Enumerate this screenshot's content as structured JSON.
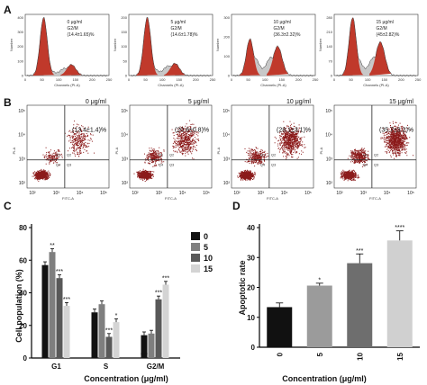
{
  "panel_labels": {
    "a": "A",
    "b": "B",
    "c": "C",
    "d": "D"
  },
  "colors": {
    "bar_0": "#111111",
    "bar_5": "#7f7f7f",
    "bar_10": "#595959",
    "bar_15": "#d4d4d4",
    "flow_dots": "#8b1a1a",
    "histogram_fill": "#c0392b",
    "histogram_s_fill": "#c8c8c8"
  },
  "cell_cycle_histograms": [
    {
      "concentration": "0 μg/ml",
      "phase_label": "G2/M",
      "g2m_value": "(14.4±1.65)%",
      "xlabel": "Channels (PI-A)",
      "ylabel": "Number",
      "y_ticks": [
        "0",
        "100",
        "200",
        "300",
        "400"
      ],
      "x_ticks": [
        "0",
        "50",
        "100",
        "150",
        "200",
        "250"
      ]
    },
    {
      "concentration": "5 μg/ml",
      "phase_label": "G2/M",
      "g2m_value": "(14.6±1.78)%",
      "xlabel": "Channels (PI-A)",
      "ylabel": "Number",
      "y_ticks": [
        "0",
        "50",
        "100",
        "150",
        "200"
      ],
      "x_ticks": [
        "0",
        "50",
        "100",
        "150",
        "200",
        "250"
      ]
    },
    {
      "concentration": "10 μg/ml",
      "phase_label": "G2/M",
      "g2m_value": "(36.3±2.32)%",
      "xlabel": "Channels (PI-A)",
      "ylabel": "Number",
      "y_ticks": [
        "0",
        "100",
        "200",
        "300"
      ],
      "x_ticks": [
        "0",
        "50",
        "100",
        "150",
        "200",
        "250"
      ]
    },
    {
      "concentration": "15 μg/ml",
      "phase_label": "G2/M",
      "g2m_value": "(45±2.82)%",
      "xlabel": "Channels (PI-A)",
      "ylabel": "Number",
      "y_ticks": [
        "0",
        "70",
        "140",
        "210",
        "280"
      ],
      "x_ticks": [
        "0",
        "50",
        "100",
        "150",
        "200",
        "250"
      ]
    }
  ],
  "apoptosis_flow_plots": [
    {
      "concentration": "0 μg/ml",
      "value": "(13.4±1.4)%",
      "xlabel": "FITC-A",
      "ylabel": "PI-A"
    },
    {
      "concentration": "5 μg/ml",
      "value": "(20.6±0.8)%",
      "xlabel": "FITC-A",
      "ylabel": "PI-A"
    },
    {
      "concentration": "10 μg/ml",
      "value": "(28.1±3.1)%",
      "xlabel": "FITC-A",
      "ylabel": "PI-A"
    },
    {
      "concentration": "15 μg/ml",
      "value": "(35.7±3.2)%",
      "xlabel": "FITC-A",
      "ylabel": "PI-A"
    }
  ],
  "flow_axis_ticks": {
    "x": [
      "10²",
      "10³",
      "10⁴",
      "10⁵"
    ],
    "y": [
      "10²",
      "10³",
      "10⁴",
      "10⁵"
    ]
  },
  "flow_quadrant_labels": [
    "Q1",
    "Q2",
    "Q3",
    "Q4"
  ],
  "chart_data": [
    {
      "type": "bar",
      "panel": "C",
      "ylabel": "Cell population (%)",
      "xlabel": "Concentration (μg/ml)",
      "categories": [
        "G1",
        "S",
        "G2/M"
      ],
      "ylim": [
        0,
        80
      ],
      "yticks": [
        "0",
        "20",
        "40",
        "60",
        "80"
      ],
      "legend_position": "right",
      "series": [
        {
          "name": "0",
          "values": [
            57,
            28,
            14
          ],
          "errors": [
            2,
            2,
            2
          ],
          "stars": [
            "",
            "",
            "***"
          ]
        },
        {
          "name": "5",
          "values": [
            65,
            33,
            15
          ],
          "errors": [
            2,
            2,
            2
          ],
          "stars": [
            "**",
            "",
            ""
          ]
        },
        {
          "name": "10",
          "values": [
            49,
            13,
            36
          ],
          "errors": [
            2,
            2,
            2
          ],
          "stars": [
            "***",
            "***",
            "***"
          ]
        },
        {
          "name": "15",
          "values": [
            32,
            22,
            45
          ],
          "errors": [
            2,
            2,
            2
          ],
          "stars": [
            "***",
            "*",
            "***"
          ]
        }
      ]
    },
    {
      "type": "bar",
      "panel": "D",
      "ylabel": "Apoptotic rate",
      "xlabel": "Concentration (μg/ml)",
      "categories": [
        "0",
        "5",
        "10",
        "15"
      ],
      "values": [
        13.4,
        20.6,
        28.1,
        35.7
      ],
      "errors": [
        1.4,
        0.8,
        3.1,
        3.2
      ],
      "stars": [
        "",
        "*",
        "***",
        "****"
      ],
      "ylim": [
        0,
        40
      ],
      "yticks": [
        "0",
        "10",
        "20",
        "30",
        "40"
      ]
    }
  ]
}
